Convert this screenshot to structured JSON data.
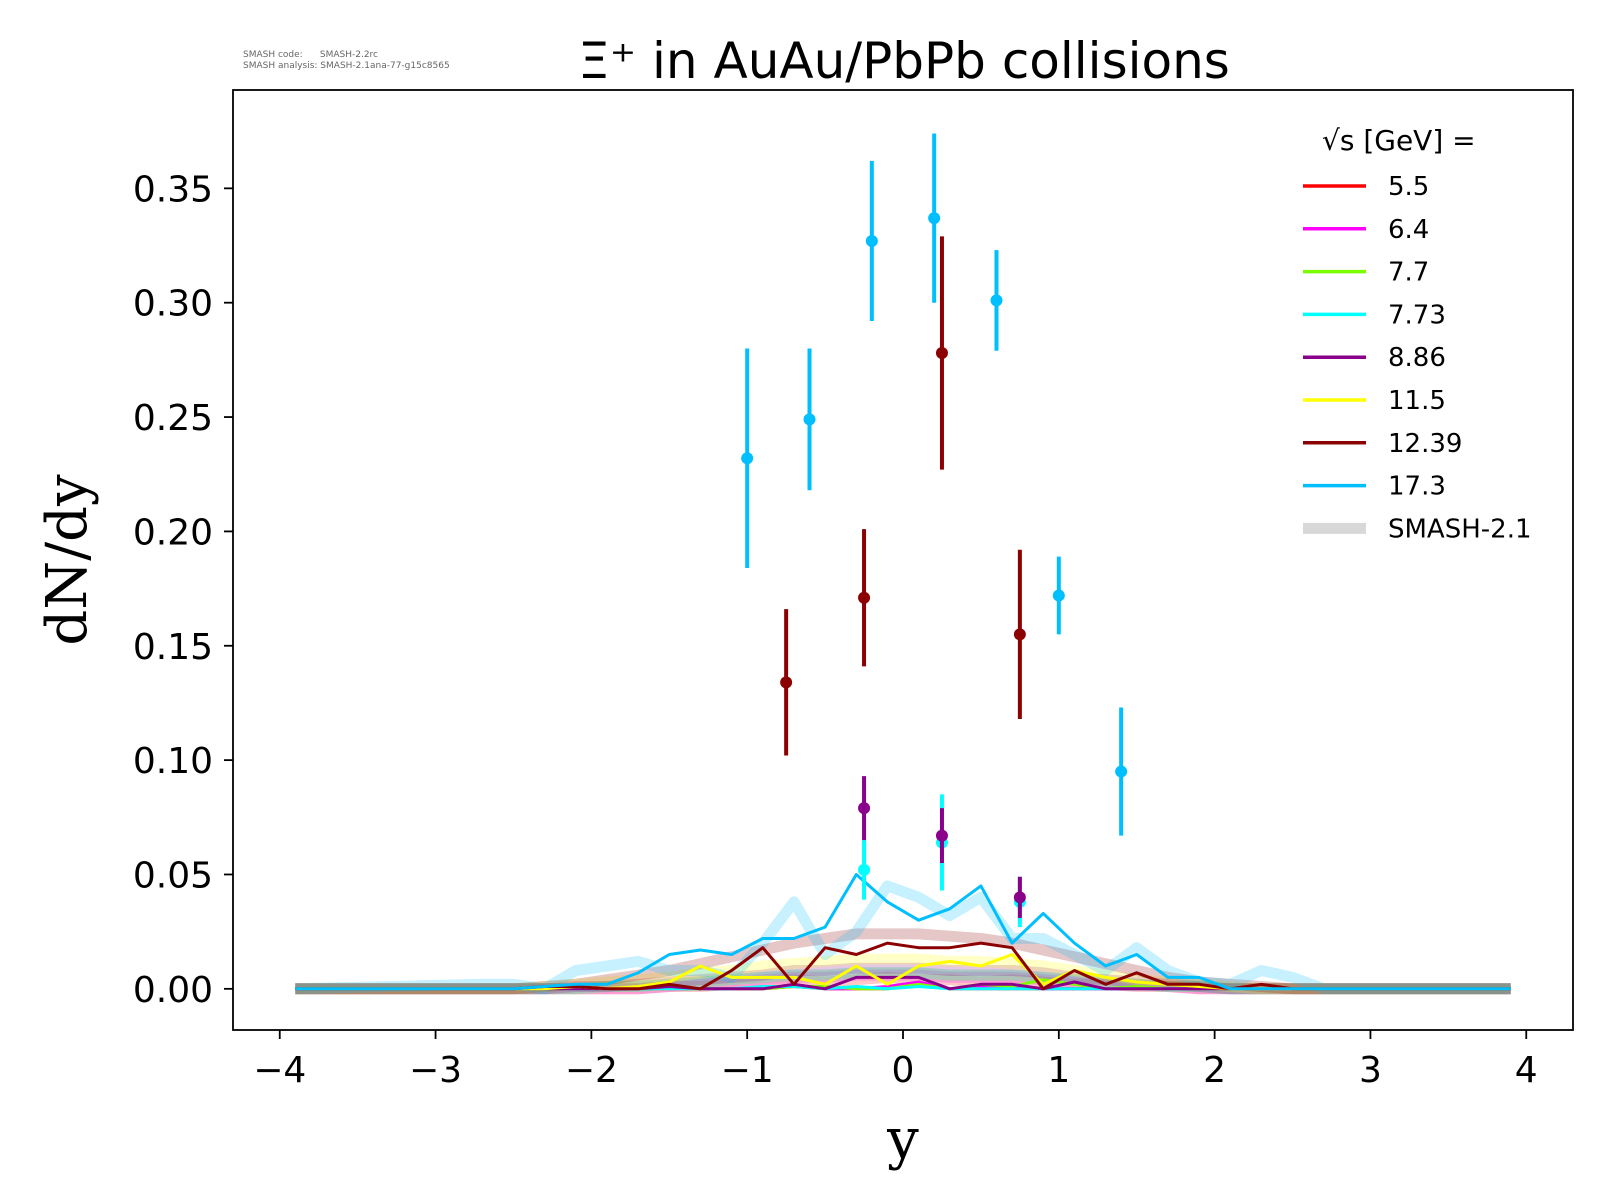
{
  "metadata": {
    "line1": "SMASH code:      SMASH-2.2rc",
    "line2": "SMASH analysis: SMASH-2.1ana-77-g15c8565"
  },
  "chart_data": {
    "type": "line",
    "title": "Ξ⁺ in AuAu/PbPb collisions",
    "xlabel": "y",
    "ylabel": "dN/dy",
    "xlim": [
      -4.3,
      4.3
    ],
    "ylim": [
      -0.018,
      0.393
    ],
    "xticks": [
      -4,
      -3,
      -2,
      -1,
      0,
      1,
      2,
      3,
      4
    ],
    "xtick_labels": [
      "−4",
      "−3",
      "−2",
      "−1",
      "0",
      "1",
      "2",
      "3",
      "4"
    ],
    "yticks": [
      0.0,
      0.05,
      0.1,
      0.15,
      0.2,
      0.25,
      0.3,
      0.35
    ],
    "ytick_labels": [
      "0.00",
      "0.05",
      "0.10",
      "0.15",
      "0.20",
      "0.25",
      "0.30",
      "0.35"
    ],
    "grid": false,
    "legend": {
      "title": "√s  [GeV] =",
      "placement": "top-right",
      "smash_label": "SMASH-2.1",
      "smash_color": "#d8d8d8"
    },
    "series": [
      {
        "name": "5.5",
        "color": "#ff0000",
        "x": [
          -3.9,
          -2.7,
          -2.5,
          -2.3,
          -2.1,
          -1.9,
          -1.7,
          -1.5,
          -1.3,
          -1.1,
          -0.9,
          -0.7,
          -0.5,
          -0.3,
          -0.1,
          0.1,
          0.3,
          0.5,
          0.7,
          0.9,
          1.1,
          1.3,
          1.5,
          1.7,
          1.9,
          2.1,
          2.3,
          2.5,
          2.7,
          3.9
        ],
        "y": [
          0,
          0,
          0,
          0,
          0,
          0,
          0,
          0,
          0,
          0,
          0,
          0.001,
          0,
          0,
          0,
          0.002,
          0,
          0,
          0,
          0,
          0,
          0,
          0,
          0,
          0,
          0,
          0,
          0,
          0,
          0
        ],
        "smash_y": [
          0,
          0,
          0,
          0,
          0,
          0,
          0,
          0.001,
          0.001,
          0.002,
          0.003,
          0.004,
          0.003,
          0.004,
          0.005,
          0.004,
          0.004,
          0.003,
          0.004,
          0.003,
          0.002,
          0.002,
          0.001,
          0.001,
          0,
          0,
          0,
          0,
          0,
          0
        ],
        "points": []
      },
      {
        "name": "6.4",
        "color": "#ff00ff",
        "x": [
          -3.9,
          -2.7,
          -2.5,
          -2.3,
          -2.1,
          -1.9,
          -1.7,
          -1.5,
          -1.3,
          -1.1,
          -0.9,
          -0.7,
          -0.5,
          -0.3,
          -0.1,
          0.1,
          0.3,
          0.5,
          0.7,
          0.9,
          1.1,
          1.3,
          1.5,
          1.7,
          1.9,
          2.1,
          2.3,
          2.5,
          2.7,
          3.9
        ],
        "y": [
          0,
          0,
          0,
          0,
          0,
          0,
          0,
          0,
          0,
          0,
          0,
          0.002,
          0,
          0,
          0.001,
          0.003,
          0,
          0.001,
          0.001,
          0,
          0,
          0,
          0,
          0,
          0,
          0,
          0,
          0,
          0,
          0
        ],
        "smash_y": [
          0,
          0,
          0,
          0,
          0,
          0,
          0,
          0.001,
          0.002,
          0.003,
          0.004,
          0.005,
          0.005,
          0.006,
          0.006,
          0.006,
          0.005,
          0.005,
          0.005,
          0.004,
          0.003,
          0.002,
          0.002,
          0.001,
          0,
          0,
          0,
          0,
          0,
          0
        ],
        "points": []
      },
      {
        "name": "7.7",
        "color": "#7cfc00",
        "x": [
          -3.9,
          -2.7,
          -2.5,
          -2.3,
          -2.1,
          -1.9,
          -1.7,
          -1.5,
          -1.3,
          -1.1,
          -0.9,
          -0.7,
          -0.5,
          -0.3,
          -0.1,
          0.1,
          0.3,
          0.5,
          0.7,
          0.9,
          1.1,
          1.3,
          1.5,
          1.7,
          1.9,
          2.1,
          2.3,
          2.5,
          2.7,
          3.9
        ],
        "y": [
          0,
          0,
          0,
          0,
          0,
          0,
          0,
          0,
          0,
          0,
          0,
          0.001,
          0.001,
          0,
          0,
          0.002,
          0,
          0.002,
          0.001,
          0.004,
          0.002,
          0,
          0.001,
          0,
          0,
          0,
          0,
          0,
          0,
          0
        ],
        "smash_y": [
          0,
          0,
          0,
          0,
          0,
          0.001,
          0.001,
          0.002,
          0.003,
          0.004,
          0.005,
          0.006,
          0.006,
          0.007,
          0.007,
          0.007,
          0.006,
          0.006,
          0.006,
          0.005,
          0.004,
          0.003,
          0.002,
          0.001,
          0.001,
          0,
          0,
          0,
          0,
          0
        ],
        "points": []
      },
      {
        "name": "7.73",
        "color": "#00ffff",
        "x": [
          -3.9,
          -2.7,
          -2.5,
          -2.3,
          -2.1,
          -1.9,
          -1.7,
          -1.5,
          -1.3,
          -1.1,
          -0.9,
          -0.7,
          -0.5,
          -0.3,
          -0.1,
          0.1,
          0.3,
          0.5,
          0.7,
          0.9,
          1.1,
          1.3,
          1.5,
          1.7,
          1.9,
          2.1,
          2.3,
          2.5,
          2.7,
          3.9
        ],
        "y": [
          0,
          0,
          0,
          0,
          0,
          0,
          0,
          0,
          0,
          0,
          0.001,
          0.001,
          0,
          0.001,
          0,
          0.001,
          0,
          0,
          0,
          0,
          0,
          0,
          0,
          0,
          0,
          0,
          0,
          0,
          0,
          0
        ],
        "smash_y": [
          0,
          0,
          0,
          0,
          0,
          0.001,
          0.001,
          0.002,
          0.003,
          0.004,
          0.005,
          0.006,
          0.006,
          0.007,
          0.007,
          0.007,
          0.006,
          0.006,
          0.006,
          0.005,
          0.004,
          0.003,
          0.002,
          0.001,
          0.001,
          0,
          0,
          0,
          0,
          0
        ],
        "points": [
          {
            "x": -0.25,
            "y": 0.052,
            "err": 0.013
          },
          {
            "x": 0.25,
            "y": 0.064,
            "err": 0.021
          },
          {
            "x": 0.75,
            "y": 0.038,
            "err": 0.011
          }
        ]
      },
      {
        "name": "8.86",
        "color": "#8b008b",
        "x": [
          -3.9,
          -2.7,
          -2.5,
          -2.3,
          -2.1,
          -1.9,
          -1.7,
          -1.5,
          -1.3,
          -1.1,
          -0.9,
          -0.7,
          -0.5,
          -0.3,
          -0.1,
          0.1,
          0.3,
          0.5,
          0.7,
          0.9,
          1.1,
          1.3,
          1.5,
          1.7,
          1.9,
          2.1,
          2.3,
          2.5,
          2.7,
          3.9
        ],
        "y": [
          0,
          0,
          0,
          0,
          0,
          0,
          0,
          0.001,
          0,
          0,
          0,
          0.002,
          0,
          0.005,
          0.005,
          0.005,
          0,
          0.002,
          0.002,
          0,
          0.003,
          0,
          0,
          0,
          0,
          0,
          0,
          0,
          0,
          0
        ],
        "smash_y": [
          0,
          0,
          0,
          0,
          0.001,
          0.001,
          0.002,
          0.003,
          0.004,
          0.005,
          0.006,
          0.008,
          0.008,
          0.009,
          0.009,
          0.009,
          0.008,
          0.008,
          0.008,
          0.007,
          0.005,
          0.004,
          0.003,
          0.002,
          0.001,
          0,
          0,
          0,
          0,
          0
        ],
        "points": [
          {
            "x": -0.25,
            "y": 0.079,
            "err": 0.014
          },
          {
            "x": 0.25,
            "y": 0.067,
            "err": 0.012
          },
          {
            "x": 0.75,
            "y": 0.04,
            "err": 0.009
          }
        ]
      },
      {
        "name": "11.5",
        "color": "#ffff00",
        "x": [
          -3.9,
          -2.7,
          -2.5,
          -2.3,
          -2.1,
          -1.9,
          -1.7,
          -1.5,
          -1.3,
          -1.1,
          -0.9,
          -0.7,
          -0.5,
          -0.3,
          -0.1,
          0.1,
          0.3,
          0.5,
          0.7,
          0.9,
          1.1,
          1.3,
          1.5,
          1.7,
          1.9,
          2.1,
          2.3,
          2.5,
          2.7,
          3.9
        ],
        "y": [
          0,
          0,
          0,
          0,
          0.001,
          0,
          0.001,
          0.003,
          0.01,
          0.005,
          0.005,
          0.005,
          0.002,
          0.01,
          0.002,
          0.01,
          0.012,
          0.01,
          0.015,
          0.002,
          0.008,
          0.005,
          0.003,
          0.002,
          0.001,
          0,
          0,
          0,
          0,
          0
        ],
        "smash_y": [
          0,
          0,
          0,
          0.001,
          0.002,
          0.003,
          0.004,
          0.005,
          0.007,
          0.008,
          0.01,
          0.011,
          0.012,
          0.013,
          0.013,
          0.013,
          0.012,
          0.012,
          0.011,
          0.01,
          0.008,
          0.006,
          0.004,
          0.003,
          0.002,
          0.001,
          0,
          0,
          0,
          0
        ],
        "points": []
      },
      {
        "name": "12.39",
        "color": "#8b0000",
        "x": [
          -3.9,
          -2.7,
          -2.5,
          -2.3,
          -2.1,
          -1.9,
          -1.7,
          -1.5,
          -1.3,
          -1.1,
          -0.9,
          -0.7,
          -0.5,
          -0.3,
          -0.1,
          0.1,
          0.3,
          0.5,
          0.7,
          0.9,
          1.1,
          1.3,
          1.5,
          1.7,
          1.9,
          2.1,
          2.3,
          2.5,
          2.7,
          3.9
        ],
        "y": [
          0,
          0,
          0,
          0.001,
          0.001,
          0,
          0,
          0.002,
          0,
          0.008,
          0.018,
          0.002,
          0.018,
          0.015,
          0.02,
          0.018,
          0.018,
          0.02,
          0.018,
          0,
          0.008,
          0.002,
          0.007,
          0.002,
          0.002,
          0,
          0.002,
          0,
          0,
          0
        ],
        "smash_y": [
          0,
          0,
          0,
          0.001,
          0.002,
          0.004,
          0.006,
          0.008,
          0.011,
          0.014,
          0.017,
          0.02,
          0.022,
          0.024,
          0.024,
          0.024,
          0.023,
          0.022,
          0.02,
          0.017,
          0.014,
          0.011,
          0.008,
          0.005,
          0.003,
          0.002,
          0.001,
          0,
          0,
          0
        ],
        "points": [
          {
            "x": -0.75,
            "y": 0.134,
            "err": 0.032
          },
          {
            "x": -0.25,
            "y": 0.171,
            "err": 0.03
          },
          {
            "x": 0.25,
            "y": 0.278,
            "err": 0.051
          },
          {
            "x": 0.75,
            "y": 0.155,
            "err": 0.037
          }
        ]
      },
      {
        "name": "17.3",
        "color": "#00bfff",
        "x": [
          -3.9,
          -2.7,
          -2.5,
          -2.3,
          -2.1,
          -1.9,
          -1.7,
          -1.5,
          -1.3,
          -1.1,
          -0.9,
          -0.7,
          -0.5,
          -0.3,
          -0.1,
          0.1,
          0.3,
          0.5,
          0.7,
          0.9,
          1.1,
          1.3,
          1.5,
          1.7,
          1.9,
          2.1,
          2.3,
          2.5,
          2.7,
          3.9
        ],
        "y": [
          0,
          0,
          0,
          0.001,
          0.002,
          0.002,
          0.007,
          0.015,
          0.017,
          0.015,
          0.022,
          0.022,
          0.027,
          0.05,
          0.038,
          0.03,
          0.035,
          0.045,
          0.02,
          0.033,
          0.02,
          0.01,
          0.015,
          0.005,
          0.005,
          0,
          0,
          0,
          0,
          0
        ],
        "smash_y": [
          0,
          0.002,
          0.002,
          0,
          0.008,
          0.01,
          0.012,
          0.008,
          0.008,
          0.005,
          0.02,
          0.038,
          0.015,
          0.025,
          0.045,
          0.04,
          0.032,
          0.04,
          0.022,
          0.022,
          0.015,
          0.008,
          0.018,
          0.008,
          0.003,
          0.002,
          0.008,
          0.005,
          0,
          0
        ],
        "points": [
          {
            "x": -1.0,
            "y": 0.232,
            "err": 0.048
          },
          {
            "x": -0.6,
            "y": 0.249,
            "err": 0.031
          },
          {
            "x": -0.2,
            "y": 0.327,
            "err": 0.035
          },
          {
            "x": 0.2,
            "y": 0.337,
            "err": 0.037
          },
          {
            "x": 0.6,
            "y": 0.301,
            "err": 0.022
          },
          {
            "x": 1.0,
            "y": 0.172,
            "err": 0.017
          },
          {
            "x": 1.4,
            "y": 0.095,
            "err": 0.028
          }
        ]
      }
    ]
  }
}
